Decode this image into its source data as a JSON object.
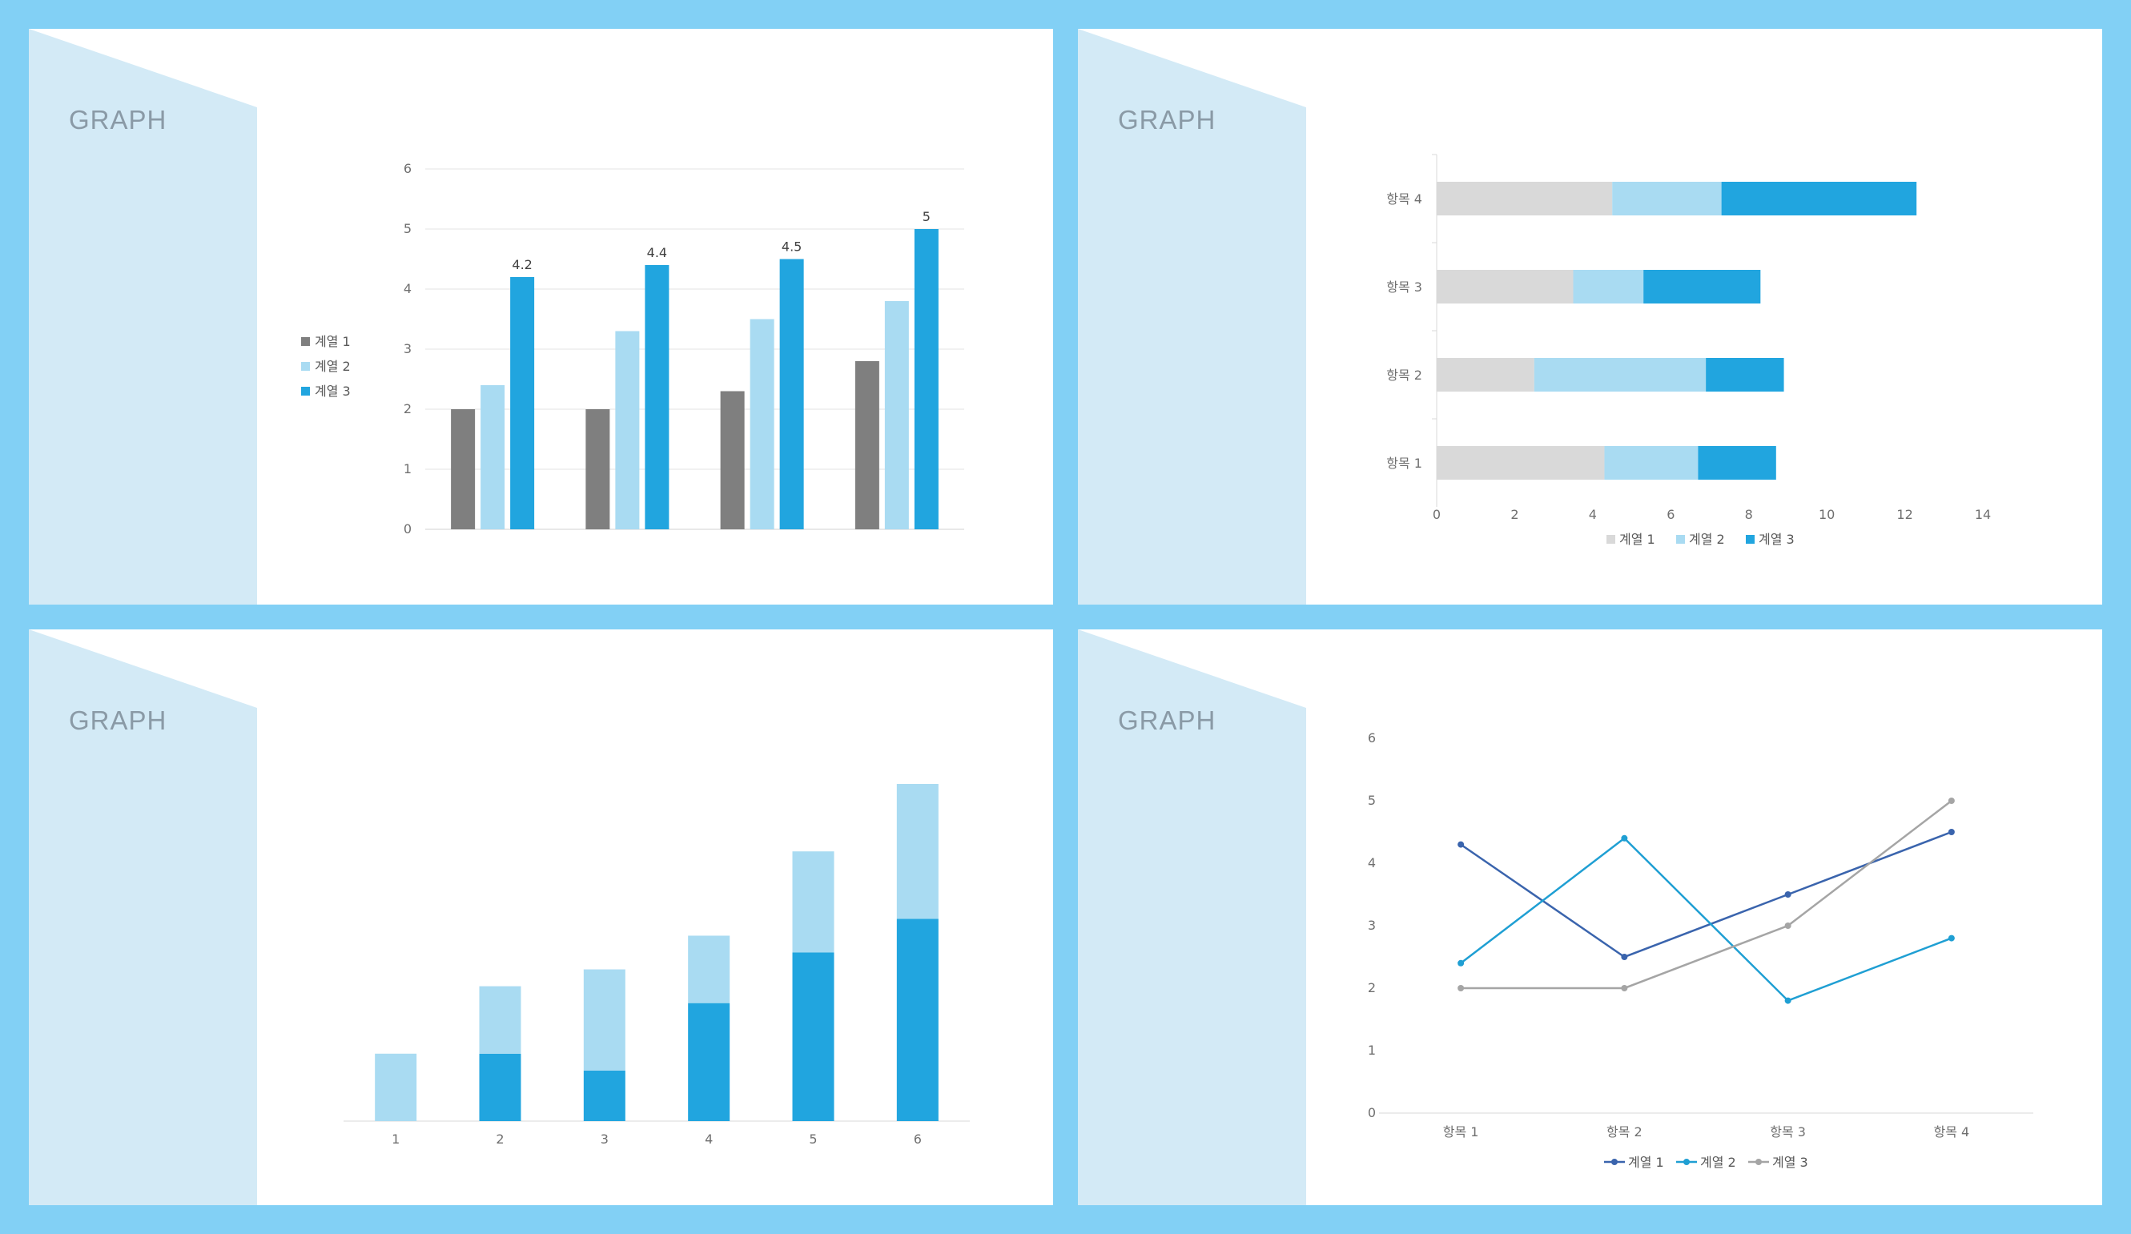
{
  "panels": [
    {
      "title": "GRAPH"
    },
    {
      "title": "GRAPH"
    },
    {
      "title": "GRAPH"
    },
    {
      "title": "GRAPH"
    }
  ],
  "colors": {
    "background": "#82d0f5",
    "deco": "#d3eaf6",
    "series_gray": "#7f7f7f",
    "series_light": "#a9dbf2",
    "series_blue": "#21a5df"
  },
  "chart_data": [
    {
      "type": "bar",
      "categories": [
        "",
        "",
        "",
        ""
      ],
      "series": [
        {
          "name": "계열 1",
          "values": [
            2,
            2,
            2.3,
            2.8
          ],
          "color": "#7f7f7f"
        },
        {
          "name": "계열 2",
          "values": [
            2.4,
            3.3,
            3.5,
            3.8
          ],
          "color": "#a9dbf2"
        },
        {
          "name": "계열 3",
          "values": [
            4.2,
            4.4,
            4.5,
            5
          ],
          "color": "#21a5df"
        }
      ],
      "data_labels": [
        "4.2",
        "4.4",
        "4.5",
        "5"
      ],
      "yticks": [
        "0",
        "1",
        "2",
        "3",
        "4",
        "5",
        "6"
      ],
      "ylim": [
        0,
        6
      ],
      "grid": true,
      "legend": "left"
    },
    {
      "type": "bar",
      "orientation": "horizontal",
      "stacked": true,
      "categories": [
        "항목 1",
        "항목 2",
        "항목 3",
        "항목 4"
      ],
      "series": [
        {
          "name": "계열 1",
          "values": [
            4.3,
            2.5,
            3.5,
            4.5
          ],
          "color": "#d9d9d9"
        },
        {
          "name": "계열 2",
          "values": [
            2.4,
            4.4,
            1.8,
            2.8
          ],
          "color": "#a9dbf2"
        },
        {
          "name": "계열 3",
          "values": [
            2,
            2,
            3,
            5
          ],
          "color": "#21a5df"
        }
      ],
      "xticks": [
        "0",
        "2",
        "4",
        "6",
        "8",
        "10",
        "12",
        "14"
      ],
      "xlim": [
        0,
        14
      ],
      "grid": false,
      "legend": "bottom"
    },
    {
      "type": "bar",
      "stacked": true,
      "categories": [
        "1",
        "2",
        "3",
        "4",
        "5",
        "6"
      ],
      "series": [
        {
          "name": "",
          "values": [
            0,
            2,
            1.5,
            3.5,
            5,
            6
          ],
          "color": "#21a5df"
        },
        {
          "name": "",
          "values": [
            2,
            2,
            3,
            2,
            3,
            4
          ],
          "color": "#a9dbf2"
        }
      ],
      "ylim": [
        0,
        10
      ],
      "grid": false
    },
    {
      "type": "line",
      "categories": [
        "항목 1",
        "항목 2",
        "항목 3",
        "항목 4"
      ],
      "series": [
        {
          "name": "계열 1",
          "values": [
            4.3,
            2.5,
            3.5,
            4.5
          ],
          "color": "#3a64ad"
        },
        {
          "name": "계열 2",
          "values": [
            2.4,
            4.4,
            1.8,
            2.8
          ],
          "color": "#1f9fd3"
        },
        {
          "name": "계열 3",
          "values": [
            2,
            2,
            3,
            5
          ],
          "color": "#a5a5a5"
        }
      ],
      "yticks": [
        "0",
        "1",
        "2",
        "3",
        "4",
        "5",
        "6"
      ],
      "ylim": [
        0,
        6
      ],
      "grid": false,
      "legend": "bottom"
    }
  ]
}
